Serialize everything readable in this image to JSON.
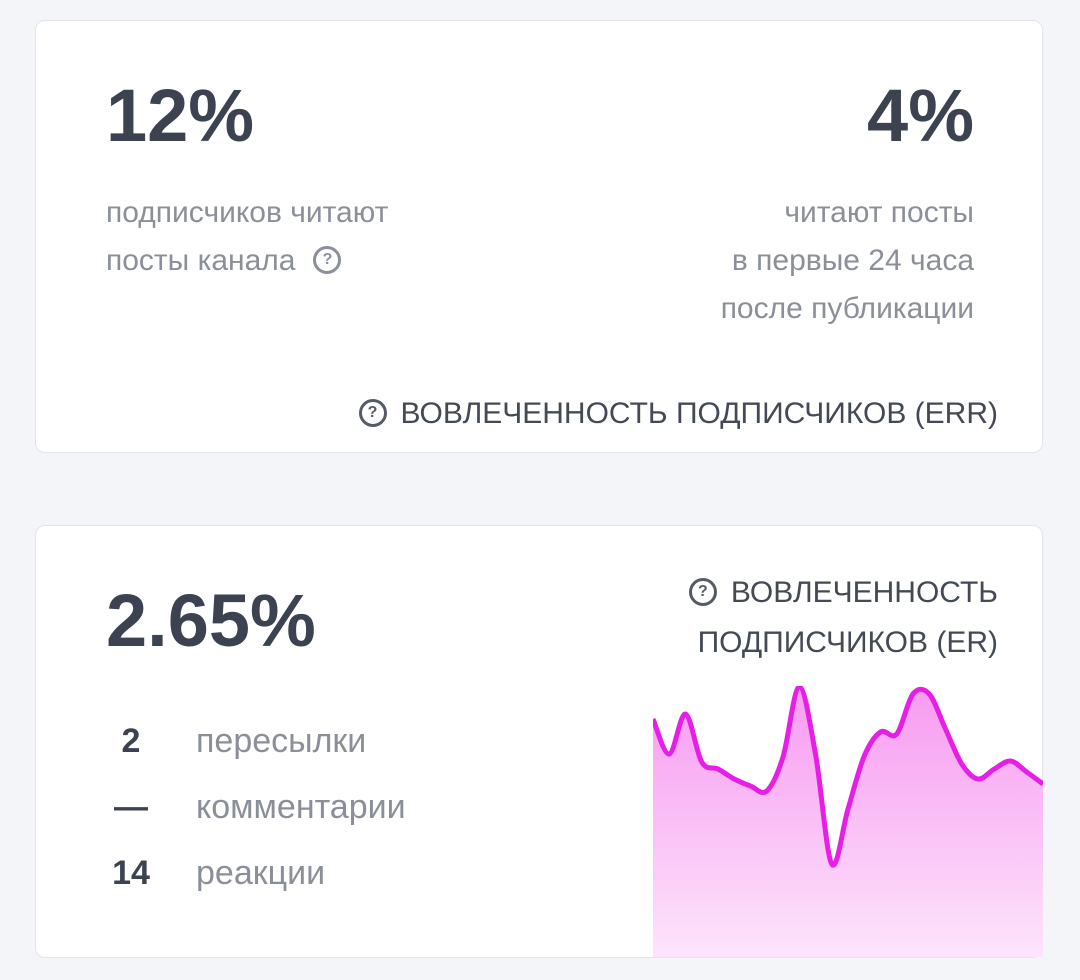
{
  "err_card": {
    "left_value": "12%",
    "left_text": [
      "подписчиков читают",
      "посты канала"
    ],
    "right_value": "4%",
    "right_text": [
      "читают посты",
      "в первые 24 часа",
      "после публикации"
    ],
    "title": "ВОВЛЕЧЕННОСТЬ ПОДПИСЧИКОВ (ERR)"
  },
  "er_card": {
    "value": "2.65%",
    "title": [
      "ВОВЛЕЧЕННОСТЬ",
      "ПОДПИСЧИКОВ (ER)"
    ],
    "stats": [
      {
        "count": "2",
        "label": "пересылки"
      },
      {
        "count": "—",
        "label": "комментарии"
      },
      {
        "count": "14",
        "label": "реакции"
      }
    ],
    "sparkline": {
      "values": [
        23.0,
        19.5,
        23.5,
        18.7,
        18.0,
        17.0,
        16.3,
        15.8,
        19.2,
        26.2,
        19.5,
        8.5,
        14.0,
        19.3,
        21.7,
        21.5,
        25.5,
        25.5,
        22.0,
        18.5,
        17.0,
        18.0,
        18.8,
        17.7,
        16.5
      ],
      "color": "#e61ee6"
    }
  }
}
